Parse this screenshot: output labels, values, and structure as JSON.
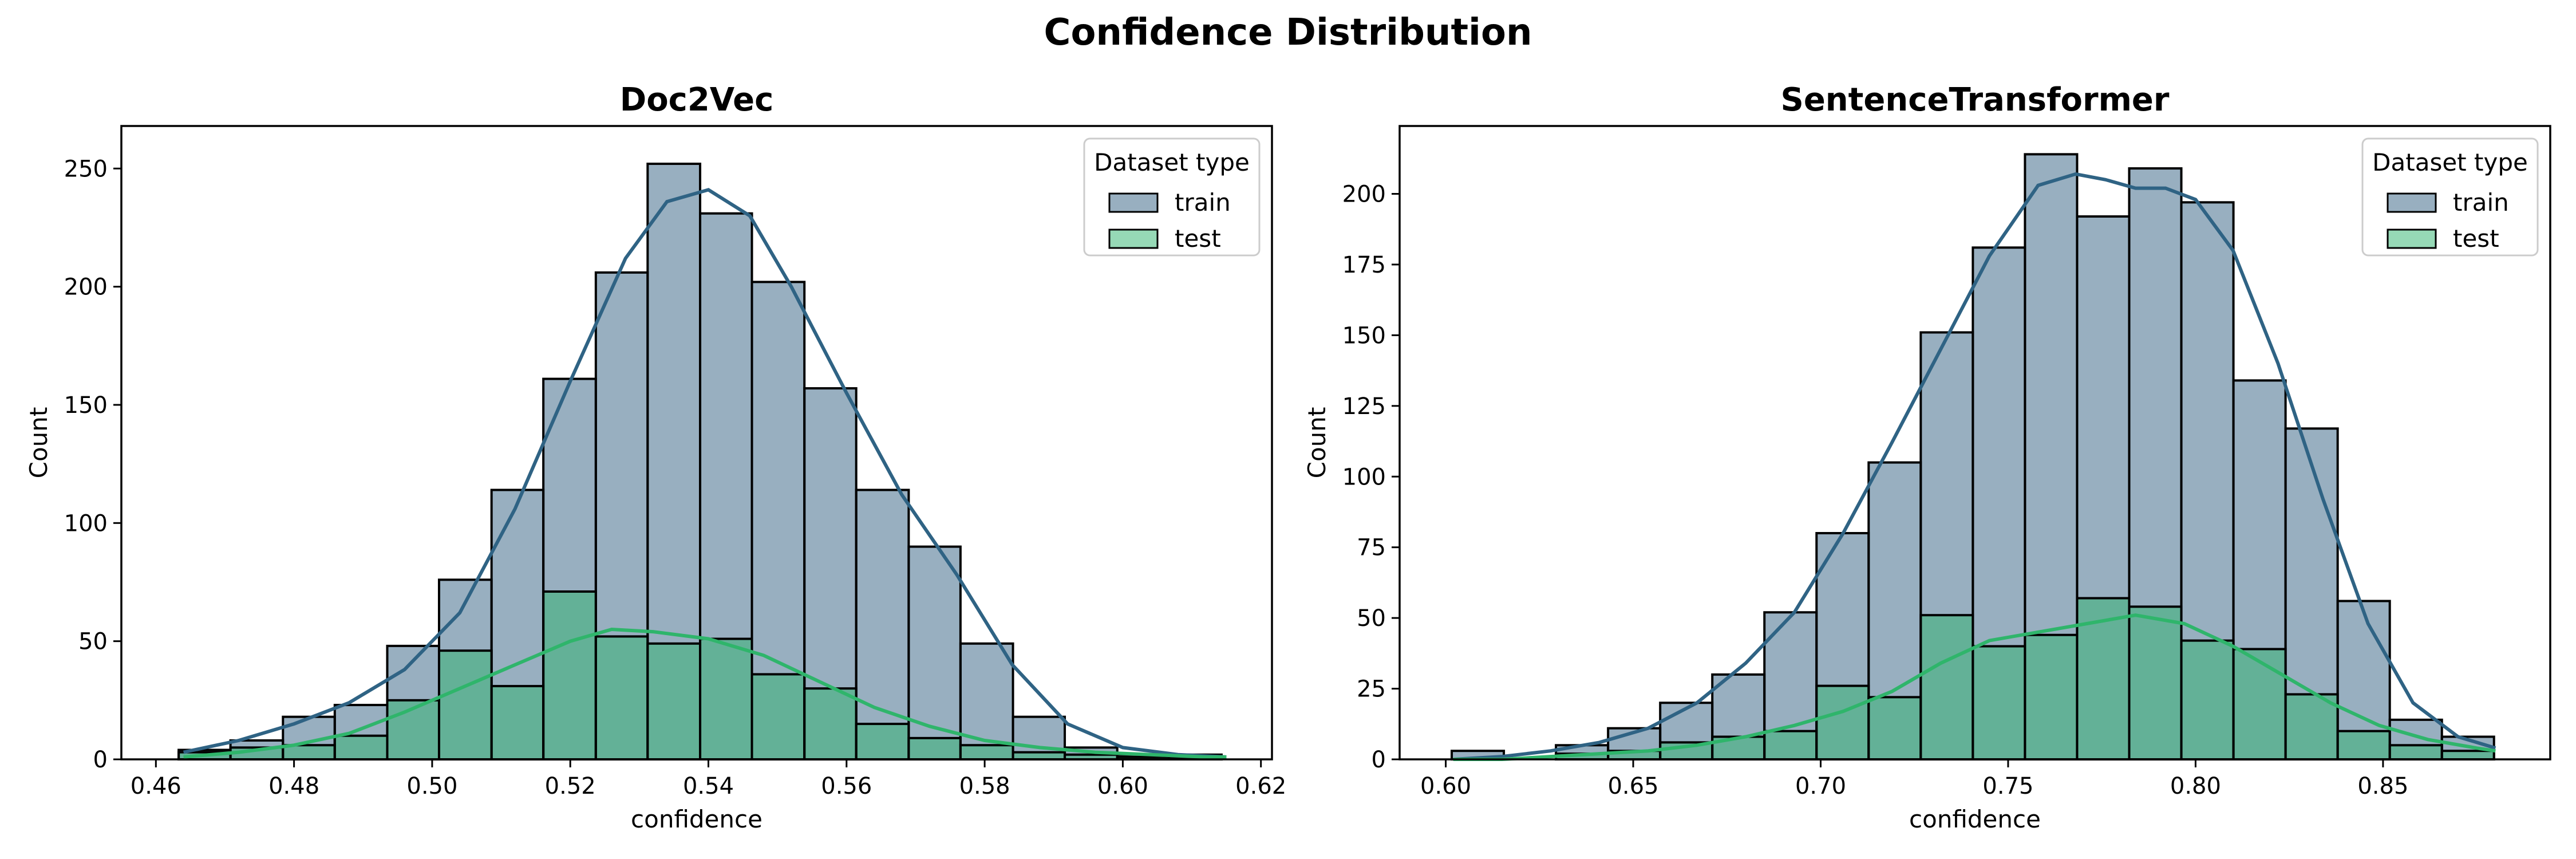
{
  "figure": {
    "title": "Confidence Distribution"
  },
  "colors": {
    "train": "#315f82",
    "test": "#2db36e",
    "kde_train": "#2f6384",
    "kde_test": "#2fb56b"
  },
  "chart_data": [
    {
      "type": "bar",
      "title": "Doc2Vec",
      "xlabel": "confidence",
      "ylabel": "Count",
      "xlim": [
        0.455,
        0.6216
      ],
      "ylim": [
        0,
        268
      ],
      "xticks": [
        0.46,
        0.48,
        0.5,
        0.52,
        0.54,
        0.56,
        0.58,
        0.6,
        0.62
      ],
      "xtick_labels": [
        "0.46",
        "0.48",
        "0.50",
        "0.52",
        "0.54",
        "0.56",
        "0.58",
        "0.60",
        "0.62"
      ],
      "yticks": [
        0,
        50,
        100,
        150,
        200,
        250
      ],
      "ytick_labels": [
        "0",
        "50",
        "100",
        "150",
        "200",
        "250"
      ],
      "bin_edges": [
        0.4633,
        0.4708,
        0.4784,
        0.4859,
        0.4935,
        0.501,
        0.5086,
        0.5161,
        0.5237,
        0.5312,
        0.5388,
        0.5463,
        0.5539,
        0.5614,
        0.569,
        0.5765,
        0.5841,
        0.5916,
        0.5992,
        0.6067,
        0.6143
      ],
      "legend": {
        "title": "Dataset type",
        "position": "upper right",
        "entries": [
          "train",
          "test"
        ]
      },
      "series": [
        {
          "name": "train",
          "values": [
            4,
            8,
            18,
            23,
            48,
            76,
            114,
            161,
            206,
            252,
            231,
            202,
            157,
            114,
            90,
            49,
            18,
            5,
            2,
            2
          ]
        },
        {
          "name": "test",
          "values": [
            3,
            5,
            6,
            10,
            25,
            46,
            31,
            71,
            52,
            49,
            51,
            36,
            30,
            15,
            9,
            6,
            3,
            2,
            1,
            1
          ]
        }
      ],
      "kde": [
        {
          "name": "train",
          "x": [
            0.464,
            0.472,
            0.48,
            0.488,
            0.496,
            0.504,
            0.512,
            0.52,
            0.528,
            0.534,
            0.54,
            0.546,
            0.552,
            0.56,
            0.568,
            0.576,
            0.584,
            0.592,
            0.6,
            0.608,
            0.615
          ],
          "y": [
            3,
            8,
            15,
            24,
            38,
            62,
            106,
            160,
            212,
            236,
            241,
            230,
            200,
            155,
            112,
            78,
            40,
            15,
            5,
            2,
            1
          ]
        },
        {
          "name": "test",
          "x": [
            0.464,
            0.472,
            0.48,
            0.488,
            0.496,
            0.504,
            0.512,
            0.52,
            0.526,
            0.532,
            0.54,
            0.548,
            0.556,
            0.564,
            0.572,
            0.58,
            0.588,
            0.596,
            0.604,
            0.612,
            0.615
          ],
          "y": [
            1,
            3,
            6,
            11,
            20,
            30,
            40,
            50,
            55,
            54,
            51,
            44,
            33,
            22,
            14,
            8,
            5,
            3,
            2,
            1,
            1
          ]
        }
      ]
    },
    {
      "type": "bar",
      "title": "SentenceTransformer",
      "xlabel": "confidence",
      "ylabel": "Count",
      "xlim": [
        0.5877,
        0.8946
      ],
      "ylim": [
        0,
        224
      ],
      "xticks": [
        0.6,
        0.65,
        0.7,
        0.75,
        0.8,
        0.85
      ],
      "xtick_labels": [
        "0.60",
        "0.65",
        "0.70",
        "0.75",
        "0.80",
        "0.85"
      ],
      "yticks": [
        0,
        25,
        50,
        75,
        100,
        125,
        150,
        175,
        200
      ],
      "ytick_labels": [
        "0",
        "25",
        "50",
        "75",
        "100",
        "125",
        "150",
        "175",
        "200"
      ],
      "bin_edges": [
        0.6016,
        0.6155,
        0.6294,
        0.6433,
        0.6572,
        0.6711,
        0.685,
        0.6989,
        0.7128,
        0.7267,
        0.7406,
        0.7545,
        0.7684,
        0.7823,
        0.7962,
        0.8101,
        0.824,
        0.8379,
        0.8518,
        0.8657,
        0.8796
      ],
      "legend": {
        "title": "Dataset type",
        "position": "upper right",
        "entries": [
          "train",
          "test"
        ]
      },
      "series": [
        {
          "name": "train",
          "values": [
            3,
            0,
            5,
            11,
            20,
            30,
            52,
            80,
            105,
            151,
            181,
            214,
            192,
            209,
            197,
            134,
            117,
            56,
            14,
            8
          ]
        },
        {
          "name": "test",
          "values": [
            0,
            0,
            2,
            3,
            6,
            8,
            10,
            26,
            22,
            51,
            40,
            44,
            57,
            54,
            42,
            39,
            23,
            10,
            5,
            3
          ]
        }
      ],
      "kde": [
        {
          "name": "train",
          "x": [
            0.602,
            0.615,
            0.628,
            0.641,
            0.654,
            0.667,
            0.68,
            0.693,
            0.706,
            0.719,
            0.732,
            0.745,
            0.758,
            0.768,
            0.776,
            0.784,
            0.792,
            0.8,
            0.81,
            0.822,
            0.834,
            0.846,
            0.858,
            0.87,
            0.88
          ],
          "y": [
            0,
            1,
            3,
            6,
            11,
            20,
            34,
            52,
            80,
            112,
            145,
            178,
            203,
            207,
            205,
            202,
            202,
            198,
            180,
            140,
            92,
            48,
            20,
            8,
            4
          ]
        },
        {
          "name": "test",
          "x": [
            0.602,
            0.615,
            0.628,
            0.641,
            0.654,
            0.667,
            0.68,
            0.693,
            0.706,
            0.719,
            0.732,
            0.745,
            0.758,
            0.771,
            0.784,
            0.797,
            0.81,
            0.823,
            0.836,
            0.849,
            0.862,
            0.875,
            0.88
          ],
          "y": [
            0,
            0,
            1,
            2,
            3,
            5,
            8,
            12,
            17,
            24,
            34,
            42,
            45,
            48,
            51,
            48,
            40,
            30,
            20,
            12,
            7,
            4,
            3
          ]
        }
      ]
    }
  ]
}
